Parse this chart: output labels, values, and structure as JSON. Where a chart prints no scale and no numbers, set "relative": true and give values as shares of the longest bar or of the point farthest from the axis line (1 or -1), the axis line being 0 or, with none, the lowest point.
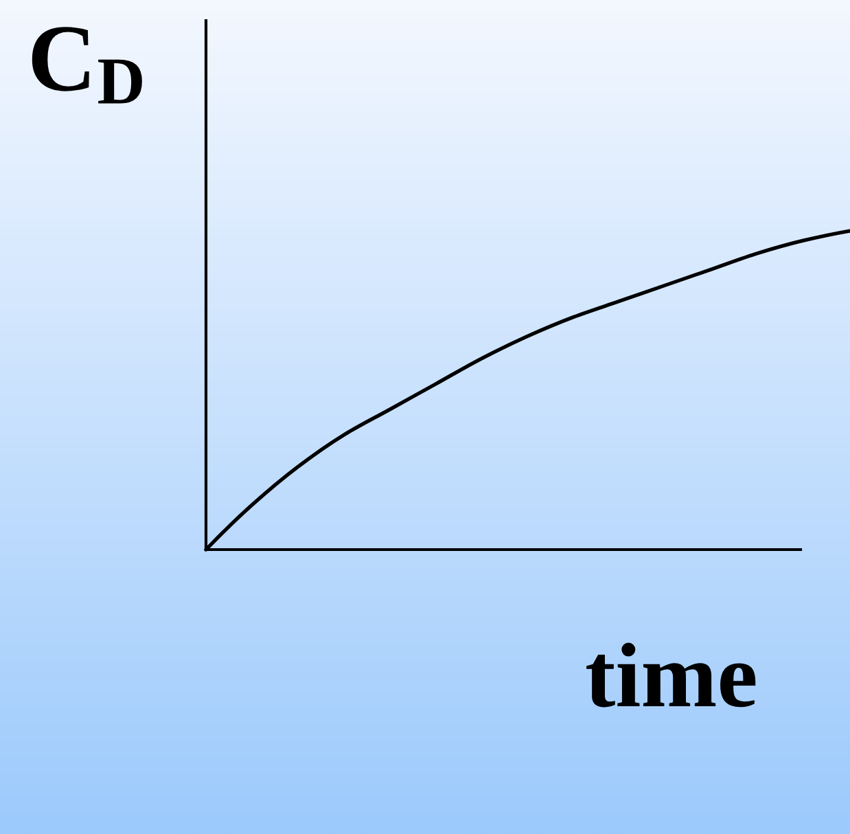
{
  "chart_data": {
    "type": "line",
    "xlabel": "time",
    "ylabel": "C$_{D}$",
    "categories": [
      null,
      null,
      null,
      null,
      null,
      null,
      null,
      null,
      null,
      null,
      null,
      null,
      null,
      null,
      null
    ],
    "values": [
      0,
      0.14,
      0.26,
      0.36,
      0.44,
      0.52,
      0.6,
      0.67,
      0.73,
      0.78,
      0.83,
      0.88,
      0.93,
      0.97,
      1
    ],
    "color": "#000000",
    "relative": true,
    "tick_labels": false
  }
}
